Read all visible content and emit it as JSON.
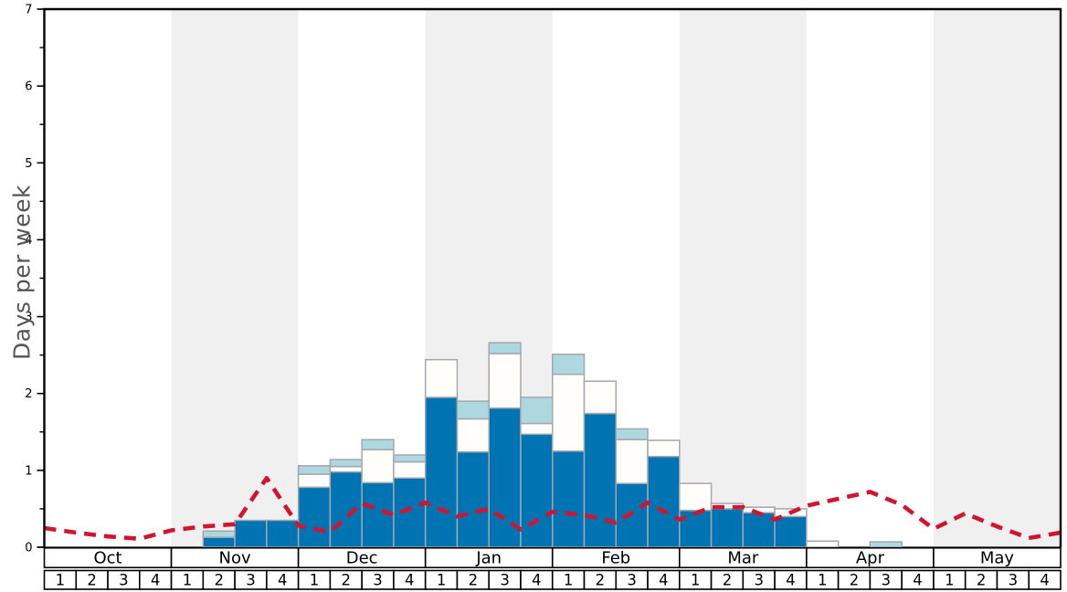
{
  "chart_data": {
    "type": "bar",
    "title": "",
    "ylabel": "Days per week",
    "xlabel": "",
    "ylim": [
      0,
      7
    ],
    "y_ticks": [
      0,
      1,
      2,
      3,
      4,
      5,
      6,
      7
    ],
    "grid": "off",
    "legend": "none",
    "months": [
      "Oct",
      "Nov",
      "Dec",
      "Jan",
      "Feb",
      "Mar",
      "Apr",
      "May"
    ],
    "weeks_per_month": [
      "1",
      "2",
      "3",
      "4"
    ],
    "shaded_month_indices": [
      1,
      3,
      5,
      7
    ],
    "series": [
      {
        "name": "dark-blue-days",
        "color": "#0074b3",
        "values": [
          0,
          0,
          0,
          0,
          0,
          0.13,
          0.35,
          0.35,
          0.78,
          0.98,
          0.84,
          0.9,
          1.95,
          1.24,
          1.81,
          1.47,
          1.25,
          1.74,
          0.83,
          1.18,
          0.48,
          0.5,
          0.45,
          0.4,
          0,
          0,
          0,
          0,
          0,
          0,
          0,
          0
        ]
      },
      {
        "name": "white-days",
        "color": "#fffefa",
        "values": [
          0,
          0,
          0,
          0,
          0,
          0,
          0,
          0,
          0.17,
          0.07,
          0.43,
          0.21,
          0.49,
          0.43,
          0.71,
          0.14,
          1.0,
          0.42,
          0.57,
          0.21,
          0.35,
          0.07,
          0.07,
          0.1,
          0.08,
          0,
          0,
          0,
          0,
          0,
          0,
          0
        ]
      },
      {
        "name": "light-blue-days",
        "color": "#add8e0",
        "values": [
          0,
          0,
          0,
          0,
          0,
          0.08,
          0,
          0,
          0.11,
          0.09,
          0.13,
          0.09,
          0,
          0.23,
          0.14,
          0.34,
          0.26,
          0,
          0.14,
          0,
          0,
          0,
          0,
          0,
          0,
          0,
          0.07,
          0,
          0,
          0,
          0,
          0
        ]
      }
    ],
    "trend_line": {
      "name": "red-dashed-average",
      "color": "#d2152e",
      "style": "dashed",
      "values_at_week_boundaries": [
        0.25,
        0.19,
        0.14,
        0.11,
        0.22,
        0.27,
        0.3,
        0.9,
        0.28,
        0.2,
        0.57,
        0.42,
        0.58,
        0.4,
        0.5,
        0.23,
        0.46,
        0.42,
        0.32,
        0.58,
        0.36,
        0.52,
        0.52,
        0.36,
        0.54,
        0.63,
        0.72,
        0.55,
        0.24,
        0.44,
        0.27,
        0.12,
        0.19
      ]
    },
    "colors": {
      "band_shaded": "#f0f0f0",
      "band_plain": "#ffffff",
      "bar_border": "#a6a6ad",
      "axis": "#000000",
      "baseline": "#333333",
      "tick_label": "#000000",
      "axis_label": "#555555"
    }
  }
}
